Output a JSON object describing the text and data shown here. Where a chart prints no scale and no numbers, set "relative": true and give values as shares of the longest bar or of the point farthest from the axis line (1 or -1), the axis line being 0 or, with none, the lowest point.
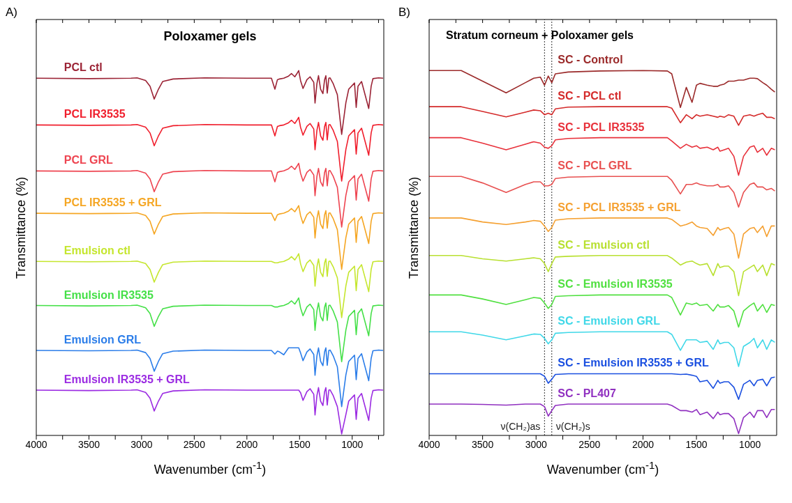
{
  "chart_data": [
    {
      "type": "line",
      "relative": true,
      "title": "Poloxamer gels",
      "xlabel": "Wavenumber (cm$^{-1}$)",
      "ylabel": "Transmittance (%)",
      "annotations": [
        "A)"
      ],
      "xlim": [
        4000,
        700
      ],
      "xticks": [
        4000,
        {
          "value": 3750,
          "label": null
        },
        3500,
        {
          "value": 3250,
          "label": null
        },
        3000,
        {
          "value": 2750,
          "label": null
        },
        2500,
        {
          "value": 2250,
          "label": null
        },
        2000,
        {
          "value": 1750,
          "label": null
        },
        1500,
        {
          "value": 1250,
          "label": null
        },
        1000,
        {
          "value": 750,
          "label": null
        }
      ],
      "x": [
        4000,
        3500,
        3100,
        3043,
        2962,
        2920,
        2880,
        2840,
        2800,
        2700,
        2400,
        2000,
        1767,
        1734,
        1710,
        1690,
        1650,
        1604,
        1577,
        1545,
        1520,
        1508,
        1490,
        1467,
        1430,
        1400,
        1365,
        1353,
        1335,
        1320,
        1300,
        1278,
        1262,
        1250,
        1237,
        1222,
        1210,
        1180,
        1141,
        1100,
        1060,
        1033,
        978,
        962,
        945,
        911,
        843,
        820,
        803,
        750,
        707
      ],
      "series": [
        {
          "name": "PCL ctl",
          "color": "#9b2335",
          "values": [
            0.979,
            0.978,
            0.979,
            0.98,
            0.973,
            0.957,
            0.922,
            0.949,
            0.97,
            0.977,
            0.98,
            0.979,
            0.979,
            0.949,
            0.975,
            0.977,
            0.979,
            0.985,
            0.992,
            0.983,
            0.994,
            1.0,
            0.972,
            0.951,
            0.975,
            0.983,
            0.968,
            0.911,
            0.964,
            0.986,
            0.949,
            0.937,
            0.975,
            0.986,
            0.938,
            0.979,
            0.98,
            0.964,
            0.934,
            0.825,
            0.912,
            0.949,
            0.966,
            0.899,
            0.957,
            0.97,
            0.896,
            0.957,
            0.978,
            0.98,
            0.979
          ]
        },
        {
          "name": "PCL IR3535",
          "color": "#f01e2c",
          "values": [
            0.851,
            0.85,
            0.851,
            0.852,
            0.845,
            0.829,
            0.794,
            0.821,
            0.842,
            0.849,
            0.852,
            0.851,
            0.851,
            0.821,
            0.847,
            0.849,
            0.851,
            0.857,
            0.864,
            0.855,
            0.866,
            0.872,
            0.844,
            0.823,
            0.847,
            0.855,
            0.84,
            0.783,
            0.836,
            0.858,
            0.821,
            0.809,
            0.847,
            0.858,
            0.81,
            0.851,
            0.852,
            0.836,
            0.806,
            0.697,
            0.784,
            0.821,
            0.838,
            0.771,
            0.829,
            0.842,
            0.768,
            0.829,
            0.85,
            0.852,
            0.851
          ]
        },
        {
          "name": "PCL GRL",
          "color": "#ee4450",
          "values": [
            0.725,
            0.724,
            0.725,
            0.726,
            0.719,
            0.703,
            0.668,
            0.695,
            0.716,
            0.723,
            0.726,
            0.725,
            0.725,
            0.695,
            0.721,
            0.723,
            0.725,
            0.731,
            0.738,
            0.729,
            0.74,
            0.746,
            0.718,
            0.697,
            0.721,
            0.729,
            0.714,
            0.657,
            0.71,
            0.732,
            0.695,
            0.683,
            0.721,
            0.732,
            0.684,
            0.725,
            0.726,
            0.71,
            0.68,
            0.571,
            0.658,
            0.695,
            0.712,
            0.645,
            0.703,
            0.716,
            0.642,
            0.703,
            0.724,
            0.726,
            0.725
          ]
        },
        {
          "name": "PCL IR3535 + GRL",
          "color": "#f5a623",
          "values": [
            0.609,
            0.608,
            0.609,
            0.61,
            0.603,
            0.587,
            0.552,
            0.579,
            0.6,
            0.607,
            0.61,
            0.609,
            0.609,
            0.589,
            0.605,
            0.607,
            0.609,
            0.615,
            0.622,
            0.613,
            0.624,
            0.63,
            0.602,
            0.581,
            0.605,
            0.613,
            0.598,
            0.541,
            0.594,
            0.616,
            0.579,
            0.567,
            0.605,
            0.616,
            0.568,
            0.609,
            0.61,
            0.594,
            0.564,
            0.455,
            0.542,
            0.579,
            0.596,
            0.529,
            0.587,
            0.6,
            0.526,
            0.587,
            0.608,
            0.61,
            0.609
          ]
        },
        {
          "name": "Emulsion ctl",
          "color": "#c5e62e",
          "values": [
            0.477,
            0.476,
            0.477,
            0.478,
            0.471,
            0.455,
            0.42,
            0.447,
            0.468,
            0.475,
            0.478,
            0.477,
            0.477,
            0.473,
            0.473,
            0.475,
            0.477,
            0.483,
            0.49,
            0.481,
            0.492,
            0.498,
            0.47,
            0.449,
            0.473,
            0.481,
            0.466,
            0.409,
            0.462,
            0.484,
            0.447,
            0.435,
            0.473,
            0.484,
            0.436,
            0.477,
            0.478,
            0.462,
            0.432,
            0.323,
            0.41,
            0.447,
            0.464,
            0.397,
            0.455,
            0.468,
            0.394,
            0.455,
            0.476,
            0.478,
            0.477
          ]
        },
        {
          "name": "Emulsion IR3535",
          "color": "#45e048",
          "values": [
            0.356,
            0.355,
            0.356,
            0.357,
            0.35,
            0.334,
            0.299,
            0.326,
            0.347,
            0.354,
            0.357,
            0.356,
            0.356,
            0.352,
            0.352,
            0.354,
            0.356,
            0.362,
            0.369,
            0.36,
            0.371,
            0.377,
            0.349,
            0.328,
            0.352,
            0.36,
            0.345,
            0.288,
            0.341,
            0.363,
            0.326,
            0.314,
            0.352,
            0.363,
            0.315,
            0.356,
            0.357,
            0.341,
            0.311,
            0.202,
            0.289,
            0.326,
            0.343,
            0.276,
            0.334,
            0.347,
            0.273,
            0.334,
            0.355,
            0.357,
            0.356
          ]
        },
        {
          "name": "Emulsion GRL",
          "color": "#2b7de9",
          "values": [
            0.233,
            0.232,
            0.233,
            0.234,
            0.227,
            0.211,
            0.176,
            0.203,
            0.224,
            0.231,
            0.234,
            0.233,
            0.233,
            0.223,
            0.231,
            0.229,
            0.221,
            0.24,
            0.24,
            0.24,
            0.24,
            0.24,
            0.226,
            0.205,
            0.229,
            0.237,
            0.222,
            0.165,
            0.218,
            0.24,
            0.203,
            0.191,
            0.229,
            0.24,
            0.192,
            0.233,
            0.234,
            0.218,
            0.188,
            0.079,
            0.166,
            0.203,
            0.22,
            0.153,
            0.211,
            0.224,
            0.15,
            0.211,
            0.232,
            0.234,
            0.233
          ]
        },
        {
          "name": "Emulsion IR3535 + GRL",
          "color": "#9b2be2",
          "values": [
            0.124,
            0.123,
            0.124,
            0.125,
            0.118,
            0.102,
            0.067,
            0.094,
            0.115,
            0.122,
            0.125,
            0.124,
            0.124,
            0.124,
            0.124,
            0.124,
            0.124,
            0.124,
            0.124,
            0.124,
            0.124,
            0.124,
            0.117,
            0.096,
            0.12,
            0.128,
            0.113,
            0.056,
            0.109,
            0.131,
            0.094,
            0.082,
            0.12,
            0.131,
            0.083,
            0.124,
            0.125,
            0.109,
            0.079,
            0.004,
            0.057,
            0.094,
            0.111,
            0.044,
            0.102,
            0.115,
            0.041,
            0.102,
            0.123,
            0.125,
            0.124
          ]
        }
      ]
    },
    {
      "type": "line",
      "relative": true,
      "title": "Stratum corneum + Poloxamer gels",
      "xlabel": "Wavenumber (cm$^{-1}$)",
      "ylabel": "Transmittance (%)",
      "annotations": [
        "B)"
      ],
      "xlim": [
        4000,
        750
      ],
      "xticks": [
        4000,
        {
          "value": 3750,
          "label": null
        },
        3500,
        {
          "value": 3250,
          "label": null
        },
        3000,
        {
          "value": 2750,
          "label": null
        },
        2500,
        {
          "value": 2250,
          "label": null
        },
        2000,
        {
          "value": 1750,
          "label": null
        },
        1500,
        {
          "value": 1250,
          "label": null
        },
        1000
      ],
      "ref_lines": [
        {
          "axis": "x",
          "value": 2921,
          "label": "ν(CH₂)as",
          "color": "#333333",
          "line_style": "dotted"
        },
        {
          "axis": "x",
          "value": 2853,
          "label": "ν(CH₂)s",
          "color": "#333333",
          "line_style": "dotted"
        }
      ],
      "x": [
        4000,
        3700,
        3500,
        3280,
        3100,
        3022,
        2960,
        2921,
        2886,
        2853,
        2820,
        2700,
        2400,
        2000,
        1772,
        1731,
        1650,
        1595,
        1541,
        1500,
        1467,
        1400,
        1343,
        1300,
        1280,
        1240,
        1200,
        1150,
        1106,
        1060,
        1000,
        962,
        930,
        880,
        843,
        800,
        767
      ],
      "series": [
        {
          "name": "SC - Control",
          "color": "#9b2a2a",
          "values": [
            1.0,
            1.0,
            0.971,
            0.939,
            0.967,
            0.979,
            0.982,
            0.96,
            0.985,
            0.967,
            0.991,
            0.996,
            0.999,
            1.0,
            0.999,
            0.991,
            0.899,
            0.954,
            0.913,
            0.96,
            0.965,
            0.96,
            0.957,
            0.957,
            0.96,
            0.963,
            0.971,
            0.971,
            0.974,
            0.974,
            0.979,
            0.979,
            0.978,
            0.967,
            0.96,
            0.949,
            0.941
          ]
        },
        {
          "name": "SC - PCL ctl",
          "color": "#d42a2a",
          "values": [
            0.901,
            0.901,
            0.888,
            0.873,
            0.886,
            0.892,
            0.89,
            0.879,
            0.883,
            0.879,
            0.895,
            0.9,
            0.901,
            0.901,
            0.901,
            0.897,
            0.857,
            0.879,
            0.868,
            0.879,
            0.875,
            0.879,
            0.875,
            0.872,
            0.875,
            0.872,
            0.879,
            0.875,
            0.85,
            0.875,
            0.879,
            0.875,
            0.879,
            0.883,
            0.872,
            0.872,
            0.868
          ]
        },
        {
          "name": "SC - PCL IR3535",
          "color": "#e8303a",
          "values": [
            0.816,
            0.816,
            0.801,
            0.783,
            0.798,
            0.805,
            0.801,
            0.79,
            0.787,
            0.794,
            0.81,
            0.814,
            0.816,
            0.816,
            0.816,
            0.807,
            0.787,
            0.798,
            0.79,
            0.794,
            0.787,
            0.79,
            0.783,
            0.79,
            0.779,
            0.783,
            0.787,
            0.765,
            0.713,
            0.765,
            0.79,
            0.794,
            0.776,
            0.787,
            0.768,
            0.787,
            0.783
          ]
        },
        {
          "name": "SC - PCL GRL",
          "color": "#e85050",
          "values": [
            0.71,
            0.71,
            0.692,
            0.666,
            0.688,
            0.695,
            0.695,
            0.684,
            0.684,
            0.688,
            0.704,
            0.708,
            0.71,
            0.71,
            0.71,
            0.699,
            0.662,
            0.688,
            0.688,
            0.692,
            0.688,
            0.684,
            0.684,
            0.688,
            0.681,
            0.681,
            0.684,
            0.666,
            0.626,
            0.666,
            0.688,
            0.692,
            0.681,
            0.681,
            0.673,
            0.677,
            0.67
          ]
        },
        {
          "name": "SC - PCL IR3535 + GRL",
          "color": "#f5a030",
          "values": [
            0.596,
            0.596,
            0.585,
            0.578,
            0.585,
            0.589,
            0.587,
            0.574,
            0.559,
            0.57,
            0.59,
            0.594,
            0.596,
            0.596,
            0.596,
            0.592,
            0.574,
            0.578,
            0.585,
            0.574,
            0.57,
            0.567,
            0.548,
            0.57,
            0.563,
            0.567,
            0.57,
            0.552,
            0.486,
            0.552,
            0.567,
            0.57,
            0.556,
            0.574,
            0.545,
            0.574,
            0.574
          ]
        },
        {
          "name": "SC - Emulsion ctl",
          "color": "#b8e030",
          "values": [
            0.493,
            0.493,
            0.484,
            0.478,
            0.484,
            0.487,
            0.484,
            0.471,
            0.449,
            0.471,
            0.489,
            0.491,
            0.493,
            0.493,
            0.493,
            0.486,
            0.467,
            0.475,
            0.478,
            0.471,
            0.467,
            0.471,
            0.438,
            0.471,
            0.46,
            0.464,
            0.464,
            0.449,
            0.383,
            0.449,
            0.46,
            0.467,
            0.449,
            0.467,
            0.438,
            0.471,
            0.467
          ]
        },
        {
          "name": "SC - Emulsion IR3535",
          "color": "#50e040",
          "values": [
            0.385,
            0.385,
            0.374,
            0.359,
            0.372,
            0.378,
            0.376,
            0.363,
            0.348,
            0.359,
            0.381,
            0.383,
            0.385,
            0.385,
            0.385,
            0.378,
            0.33,
            0.363,
            0.359,
            0.363,
            0.356,
            0.359,
            0.341,
            0.359,
            0.352,
            0.352,
            0.356,
            0.341,
            0.297,
            0.341,
            0.356,
            0.363,
            0.341,
            0.359,
            0.337,
            0.359,
            0.356
          ]
        },
        {
          "name": "SC - Emulsion GRL",
          "color": "#40d8e8",
          "values": [
            0.284,
            0.284,
            0.275,
            0.262,
            0.273,
            0.278,
            0.277,
            0.266,
            0.251,
            0.262,
            0.28,
            0.282,
            0.284,
            0.284,
            0.284,
            0.277,
            0.233,
            0.262,
            0.262,
            0.262,
            0.255,
            0.258,
            0.236,
            0.262,
            0.251,
            0.255,
            0.255,
            0.24,
            0.189,
            0.244,
            0.255,
            0.266,
            0.24,
            0.262,
            0.236,
            0.262,
            0.255
          ]
        },
        {
          "name": "SC - Emulsion IR3535 + GRL",
          "color": "#1a4fe0",
          "values": [
            0.169,
            0.169,
            0.169,
            0.169,
            0.169,
            0.169,
            0.169,
            0.162,
            0.143,
            0.154,
            0.167,
            0.169,
            0.169,
            0.169,
            0.169,
            0.169,
            0.167,
            0.168,
            0.165,
            0.162,
            0.147,
            0.151,
            0.129,
            0.151,
            0.143,
            0.147,
            0.147,
            0.132,
            0.099,
            0.14,
            0.151,
            0.136,
            0.151,
            0.154,
            0.136,
            0.158,
            0.16
          ]
        },
        {
          "name": "SC - PL407",
          "color": "#9030c0",
          "values": [
            0.086,
            0.086,
            0.085,
            0.083,
            0.086,
            0.086,
            0.086,
            0.079,
            0.053,
            0.068,
            0.082,
            0.086,
            0.086,
            0.086,
            0.086,
            0.082,
            0.068,
            0.068,
            0.064,
            0.071,
            0.057,
            0.064,
            0.046,
            0.064,
            0.057,
            0.06,
            0.06,
            0.046,
            0.005,
            0.049,
            0.064,
            0.049,
            0.068,
            0.068,
            0.049,
            0.071,
            0.071
          ]
        }
      ]
    }
  ]
}
